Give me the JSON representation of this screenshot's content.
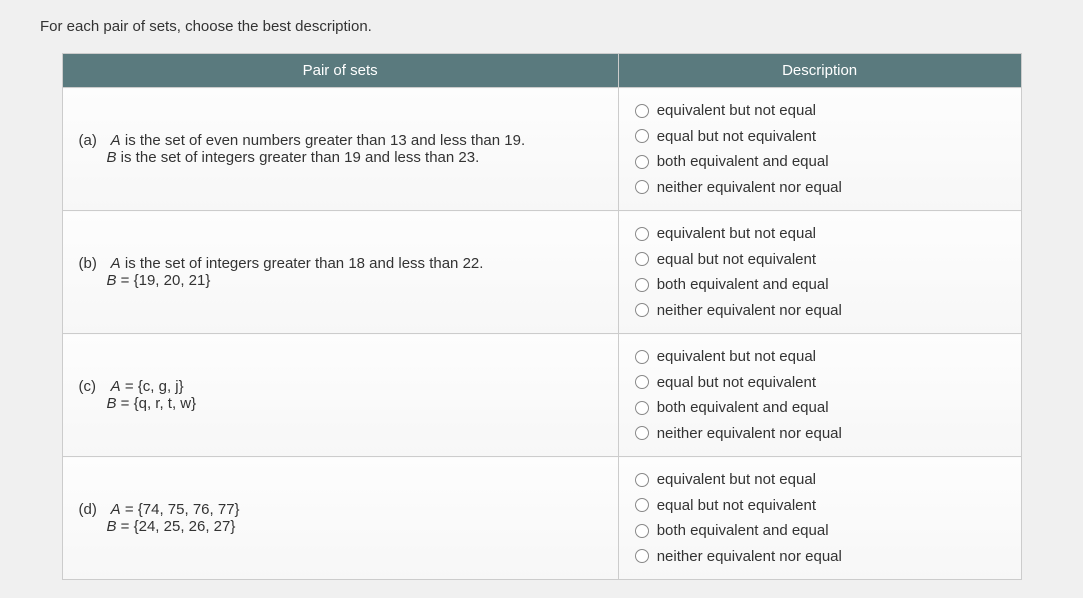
{
  "instruction": "For each pair of sets, choose the best description.",
  "headers": {
    "pair": "Pair of sets",
    "description": "Description"
  },
  "options": {
    "o1": "equivalent but not equal",
    "o2": "equal but not equivalent",
    "o3": "both equivalent and equal",
    "o4": "neither equivalent nor equal"
  },
  "rows": {
    "a": {
      "label": "(a)",
      "line1_pre": "A",
      "line1_post": " is the set of even numbers greater than 13 and less than 19.",
      "line2_pre": "B",
      "line2_post": " is the set of integers greater than 19 and less than 23."
    },
    "b": {
      "label": "(b)",
      "line1_pre": "A",
      "line1_post": " is the set of integers greater than 18 and less than 22.",
      "line2_pre": "B",
      "line2_post": " = {19, 20, 21}"
    },
    "c": {
      "label": "(c)",
      "line1_pre": "A",
      "line1_post": " = {c, g, j}",
      "line2_pre": "B",
      "line2_post": " = {q, r, t, w}"
    },
    "d": {
      "label": "(d)",
      "line1_pre": "A",
      "line1_post": " = {74, 75, 76, 77}",
      "line2_pre": "B",
      "line2_post": " = {24, 25, 26, 27}"
    }
  }
}
